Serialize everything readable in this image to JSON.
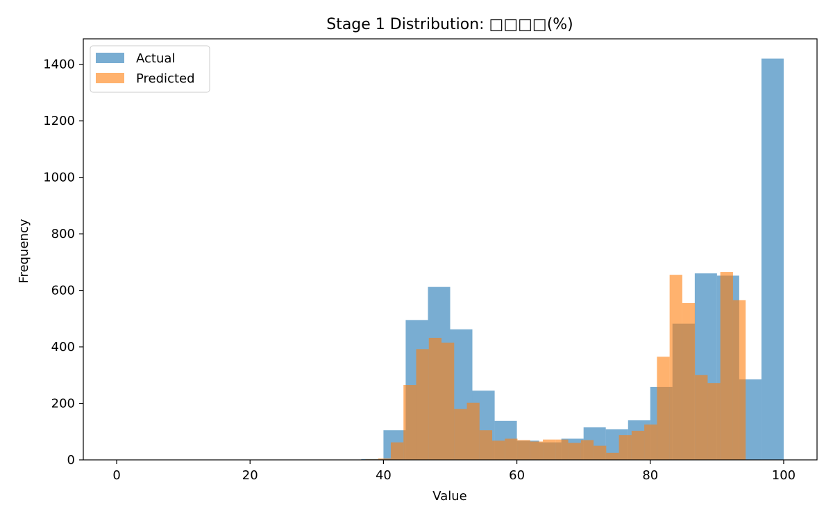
{
  "chart_data": {
    "type": "bar",
    "title": "Stage 1 Distribution: □□□□(%)",
    "xlabel": "Value",
    "ylabel": "Frequency",
    "xlim": [
      -5,
      105
    ],
    "ylim": [
      0,
      1490
    ],
    "xticks": [
      0,
      20,
      40,
      60,
      80,
      100
    ],
    "yticks": [
      0,
      200,
      400,
      600,
      800,
      1000,
      1200,
      1400
    ],
    "grid": false,
    "legend_position": "top-left",
    "series": [
      {
        "name": "Actual",
        "color": "#1f77b4",
        "opacity": 0.6,
        "bins": [
          {
            "x0": 36.67,
            "x1": 40.0,
            "value": 3
          },
          {
            "x0": 40.0,
            "x1": 43.33,
            "value": 105
          },
          {
            "x0": 43.33,
            "x1": 46.67,
            "value": 495
          },
          {
            "x0": 46.67,
            "x1": 50.0,
            "value": 612
          },
          {
            "x0": 50.0,
            "x1": 53.33,
            "value": 462
          },
          {
            "x0": 53.33,
            "x1": 56.67,
            "value": 245
          },
          {
            "x0": 56.67,
            "x1": 60.0,
            "value": 138
          },
          {
            "x0": 60.0,
            "x1": 63.33,
            "value": 68
          },
          {
            "x0": 63.33,
            "x1": 66.67,
            "value": 62
          },
          {
            "x0": 66.67,
            "x1": 70.0,
            "value": 75
          },
          {
            "x0": 70.0,
            "x1": 73.33,
            "value": 115
          },
          {
            "x0": 73.33,
            "x1": 76.67,
            "value": 108
          },
          {
            "x0": 76.67,
            "x1": 80.0,
            "value": 140
          },
          {
            "x0": 80.0,
            "x1": 83.33,
            "value": 258
          },
          {
            "x0": 83.33,
            "x1": 86.67,
            "value": 482
          },
          {
            "x0": 86.67,
            "x1": 90.0,
            "value": 660
          },
          {
            "x0": 90.0,
            "x1": 93.33,
            "value": 652
          },
          {
            "x0": 93.33,
            "x1": 96.67,
            "value": 285
          },
          {
            "x0": 96.67,
            "x1": 100.0,
            "value": 1420
          }
        ]
      },
      {
        "name": "Predicted",
        "color": "#ff7f0e",
        "opacity": 0.6,
        "bins": [
          {
            "x0": 37.3,
            "x1": 39.2,
            "value": 2
          },
          {
            "x0": 39.2,
            "x1": 41.1,
            "value": 5
          },
          {
            "x0": 41.1,
            "x1": 43.0,
            "value": 62
          },
          {
            "x0": 43.0,
            "x1": 44.9,
            "value": 265
          },
          {
            "x0": 44.9,
            "x1": 46.8,
            "value": 392
          },
          {
            "x0": 46.8,
            "x1": 48.7,
            "value": 432
          },
          {
            "x0": 48.7,
            "x1": 50.6,
            "value": 415
          },
          {
            "x0": 50.6,
            "x1": 52.5,
            "value": 180
          },
          {
            "x0": 52.5,
            "x1": 54.4,
            "value": 202
          },
          {
            "x0": 54.4,
            "x1": 56.3,
            "value": 105
          },
          {
            "x0": 56.3,
            "x1": 58.2,
            "value": 68
          },
          {
            "x0": 58.2,
            "x1": 60.1,
            "value": 75
          },
          {
            "x0": 60.1,
            "x1": 62.0,
            "value": 70
          },
          {
            "x0": 62.0,
            "x1": 63.9,
            "value": 65
          },
          {
            "x0": 63.9,
            "x1": 65.8,
            "value": 72
          },
          {
            "x0": 65.8,
            "x1": 67.7,
            "value": 72
          },
          {
            "x0": 67.7,
            "x1": 69.6,
            "value": 60
          },
          {
            "x0": 69.6,
            "x1": 71.5,
            "value": 70
          },
          {
            "x0": 71.5,
            "x1": 73.4,
            "value": 50
          },
          {
            "x0": 73.4,
            "x1": 75.3,
            "value": 25
          },
          {
            "x0": 75.3,
            "x1": 77.2,
            "value": 88
          },
          {
            "x0": 77.2,
            "x1": 79.1,
            "value": 103
          },
          {
            "x0": 79.1,
            "x1": 81.0,
            "value": 125
          },
          {
            "x0": 81.0,
            "x1": 82.9,
            "value": 365
          },
          {
            "x0": 82.9,
            "x1": 84.8,
            "value": 655
          },
          {
            "x0": 84.8,
            "x1": 86.7,
            "value": 555
          },
          {
            "x0": 86.7,
            "x1": 88.6,
            "value": 300
          },
          {
            "x0": 88.6,
            "x1": 90.5,
            "value": 272
          },
          {
            "x0": 90.5,
            "x1": 92.4,
            "value": 665
          },
          {
            "x0": 92.4,
            "x1": 94.3,
            "value": 565
          }
        ]
      }
    ]
  }
}
